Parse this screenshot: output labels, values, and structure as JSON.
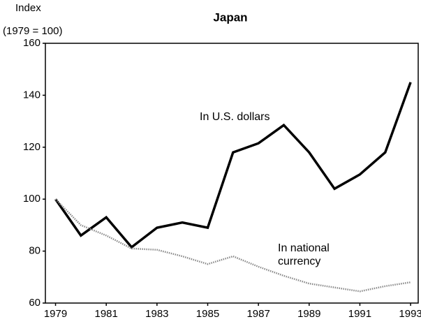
{
  "chart_data": {
    "type": "line",
    "title": "Japan",
    "ylabel": [
      "Index",
      "(1979 = 100)"
    ],
    "x": [
      1979,
      1980,
      1981,
      1982,
      1983,
      1984,
      1985,
      1986,
      1987,
      1988,
      1989,
      1990,
      1991,
      1992,
      1993
    ],
    "series": [
      {
        "name": "In U.S. dollars",
        "color": "#000000",
        "style": "solid",
        "values": [
          100,
          86,
          93,
          81.5,
          89,
          91,
          89,
          118,
          121.5,
          128.5,
          118,
          104,
          109.5,
          118,
          145
        ]
      },
      {
        "name": "In national currency",
        "color": "#8a8a8a",
        "style": "dotted",
        "values": [
          100,
          90,
          86,
          81,
          80.5,
          78,
          75,
          78,
          74,
          70.5,
          67.5,
          66,
          64.5,
          66.5,
          68
        ]
      }
    ],
    "xlim": [
      1978.6,
      1993.3
    ],
    "xticks": [
      1979,
      1981,
      1983,
      1985,
      1987,
      1989,
      1991,
      1993
    ],
    "ylim": [
      60,
      160
    ],
    "yticks": [
      60,
      80,
      100,
      120,
      140,
      160
    ],
    "grid": false
  }
}
